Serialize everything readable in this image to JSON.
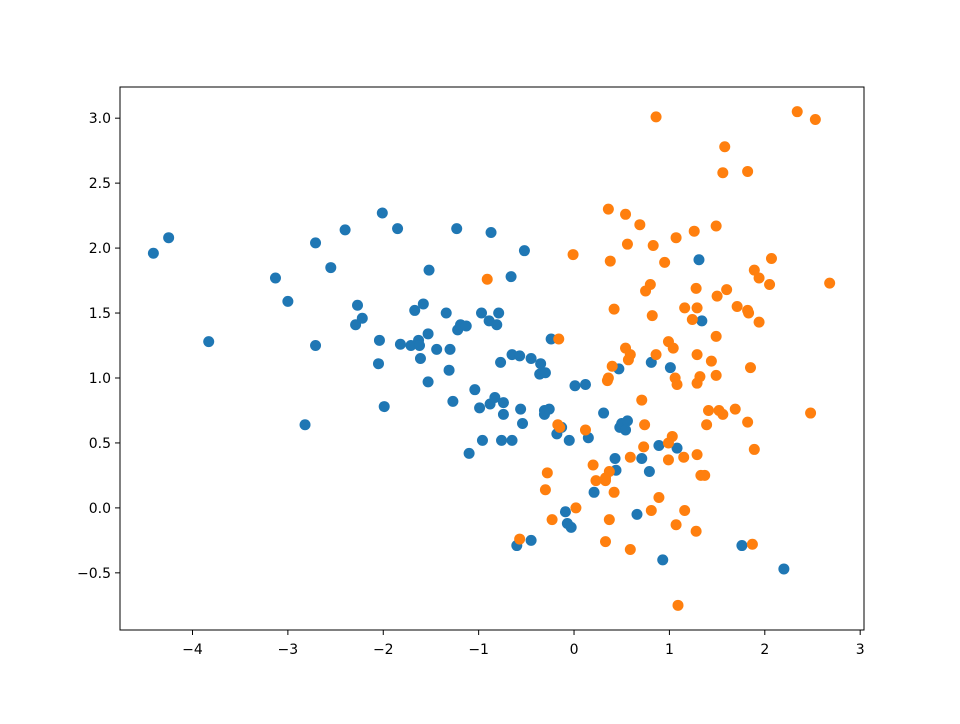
{
  "chart_data": {
    "type": "scatter",
    "xlim": [
      -4.76,
      3.04
    ],
    "ylim": [
      -0.94,
      3.24
    ],
    "xticks": [
      {
        "value": -4,
        "label": "−4"
      },
      {
        "value": -3,
        "label": "−3"
      },
      {
        "value": -2,
        "label": "−2"
      },
      {
        "value": -1,
        "label": "−1"
      },
      0,
      1,
      2,
      3
    ],
    "yticks": [
      {
        "value": -0.5,
        "label": "−0.5"
      },
      {
        "value": 0,
        "label": "0.0"
      },
      {
        "value": 0.5,
        "label": "0.5"
      },
      {
        "value": 1,
        "label": "1.0"
      },
      {
        "value": 1.5,
        "label": "1.5"
      },
      {
        "value": 2,
        "label": "2.0"
      },
      {
        "value": 2.5,
        "label": "2.5"
      },
      {
        "value": 3,
        "label": "3.0"
      }
    ],
    "series": [
      {
        "color": "#1f77b4",
        "x": [
          -4.41,
          -4.25,
          -3.83,
          -3.13,
          -3.0,
          -2.82,
          -2.71,
          -2.71,
          -2.55,
          -2.4,
          -2.29,
          -2.27,
          -2.22,
          -2.04,
          -2.05,
          -2.01,
          -1.99,
          -1.85,
          -1.82,
          -1.71,
          -1.67,
          -1.63,
          -1.62,
          -1.61,
          -1.58,
          -1.53,
          -1.52,
          -1.53,
          -1.44,
          -1.34,
          -1.3,
          -1.31,
          -1.27,
          -1.23,
          -1.22,
          -1.19,
          -1.13,
          -1.1,
          -1.04,
          -0.99,
          -0.97,
          -0.96,
          -0.89,
          -0.87,
          -0.88,
          -0.83,
          -0.81,
          -0.79,
          -0.77,
          -0.76,
          -0.74,
          -0.74,
          -0.66,
          -0.65,
          -0.65,
          -0.57,
          -0.56,
          -0.54,
          -0.52,
          -0.45,
          -0.45,
          -0.6,
          -0.36,
          -0.35,
          -0.3,
          -0.31,
          -0.31,
          -0.26,
          -0.24,
          -0.18,
          -0.13,
          -0.09,
          -0.07,
          -0.05,
          -0.03,
          0.01,
          0.12,
          0.15,
          0.21,
          0.31,
          0.43,
          0.44,
          0.47,
          0.48,
          0.5,
          0.54,
          0.56,
          0.66,
          0.71,
          0.79,
          0.81,
          0.89,
          0.93,
          1.01,
          1.08,
          1.31,
          1.34,
          1.76,
          2.2
        ],
        "y": [
          1.96,
          2.08,
          1.28,
          1.77,
          1.59,
          0.64,
          2.04,
          1.25,
          1.85,
          2.14,
          1.41,
          1.56,
          1.46,
          1.29,
          1.11,
          2.27,
          0.78,
          2.15,
          1.26,
          1.25,
          1.52,
          1.29,
          1.25,
          1.15,
          1.57,
          1.34,
          1.83,
          0.97,
          1.22,
          1.5,
          1.22,
          1.06,
          0.82,
          2.15,
          1.37,
          1.41,
          1.4,
          0.42,
          0.91,
          0.77,
          1.5,
          0.52,
          1.44,
          2.12,
          0.8,
          0.85,
          1.41,
          1.5,
          1.12,
          0.52,
          0.81,
          0.72,
          1.78,
          0.52,
          1.18,
          1.17,
          0.76,
          0.65,
          1.98,
          1.15,
          -0.25,
          -0.29,
          1.03,
          1.11,
          1.04,
          0.75,
          0.72,
          0.76,
          1.3,
          0.57,
          0.62,
          -0.03,
          -0.12,
          0.52,
          -0.15,
          0.94,
          0.95,
          0.54,
          0.12,
          0.73,
          0.38,
          0.29,
          1.07,
          0.62,
          0.65,
          0.6,
          0.67,
          -0.05,
          0.38,
          0.28,
          1.12,
          0.48,
          -0.4,
          1.08,
          0.46,
          1.91,
          1.44,
          -0.29,
          -0.47
        ]
      },
      {
        "color": "#ff7f0e",
        "x": [
          0.86,
          2.34,
          2.53,
          1.58,
          1.56,
          1.82,
          0.36,
          0.54,
          0.69,
          1.49,
          1.26,
          1.07,
          0.56,
          0.83,
          -0.01,
          0.38,
          0.95,
          2.07,
          -0.91,
          1.89,
          1.94,
          0.8,
          2.05,
          0.75,
          1.28,
          1.6,
          2.68,
          1.5,
          0.42,
          1.16,
          1.29,
          1.71,
          1.82,
          1.83,
          0.82,
          1.24,
          1.94,
          1.49,
          -0.16,
          0.99,
          1.04,
          0.54,
          0.59,
          0.86,
          1.29,
          0.57,
          1.44,
          0.4,
          1.85,
          0.36,
          0.35,
          1.06,
          1.08,
          1.32,
          1.29,
          1.49,
          0.71,
          1.41,
          1.52,
          1.56,
          1.69,
          2.48,
          1.82,
          1.39,
          0.74,
          -0.17,
          -0.15,
          0.12,
          1.03,
          0.99,
          1.89,
          0.73,
          0.59,
          1.29,
          1.15,
          0.99,
          0.2,
          -0.28,
          0.37,
          0.33,
          0.33,
          1.33,
          1.37,
          0.23,
          -0.3,
          0.42,
          0.89,
          0.02,
          1.16,
          0.81,
          -0.23,
          0.37,
          1.07,
          1.28,
          -0.57,
          0.33,
          0.59,
          1.87,
          1.09
        ],
        "y": [
          3.01,
          3.05,
          2.99,
          2.78,
          2.58,
          2.59,
          2.3,
          2.26,
          2.18,
          2.17,
          2.13,
          2.08,
          2.03,
          2.02,
          1.95,
          1.9,
          1.89,
          1.92,
          1.76,
          1.83,
          1.77,
          1.72,
          1.72,
          1.67,
          1.69,
          1.68,
          1.73,
          1.63,
          1.53,
          1.54,
          1.54,
          1.55,
          1.52,
          1.5,
          1.48,
          1.45,
          1.43,
          1.32,
          1.3,
          1.28,
          1.23,
          1.23,
          1.18,
          1.18,
          1.18,
          1.14,
          1.13,
          1.09,
          1.08,
          1.0,
          0.98,
          1.0,
          0.95,
          1.01,
          0.96,
          1.02,
          0.83,
          0.75,
          0.75,
          0.72,
          0.76,
          0.73,
          0.66,
          0.64,
          0.64,
          0.64,
          0.62,
          0.6,
          0.55,
          0.5,
          0.45,
          0.47,
          0.39,
          0.41,
          0.39,
          0.37,
          0.33,
          0.27,
          0.28,
          0.23,
          0.21,
          0.25,
          0.25,
          0.21,
          0.14,
          0.12,
          0.08,
          0.0,
          -0.02,
          -0.02,
          -0.09,
          -0.09,
          -0.13,
          -0.18,
          -0.24,
          -0.26,
          -0.32,
          -0.28,
          -0.75
        ]
      }
    ]
  }
}
